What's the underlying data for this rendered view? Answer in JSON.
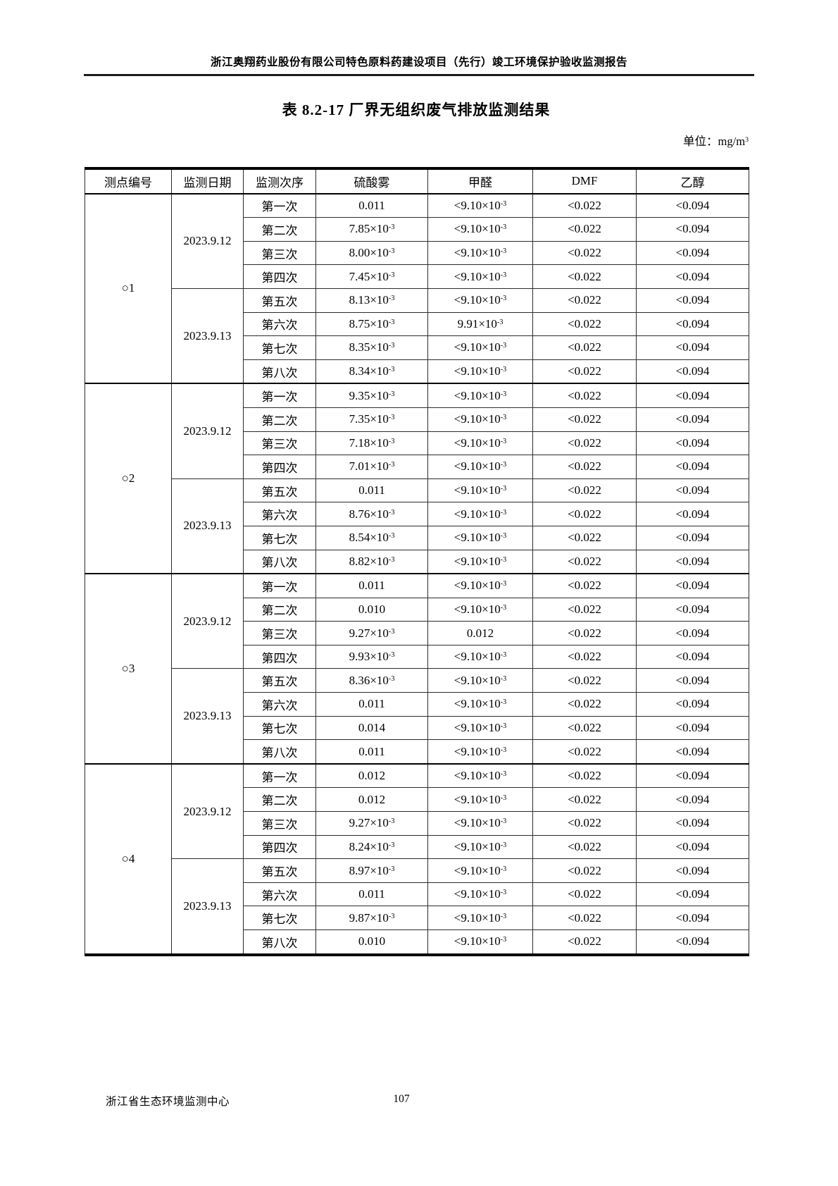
{
  "page_header": "浙江奥翔药业股份有限公司特色原料药建设项目（先行）竣工环境保护验收监测报告",
  "title": "表 8.2-17  厂界无组织废气排放监测结果",
  "unit": "单位：mg/m^3",
  "footer": {
    "org": "浙江省生态环境监测中心",
    "page_number": "107"
  },
  "table": {
    "headers": [
      "测点编号",
      "监测日期",
      "监测次序",
      "硫酸雾",
      "甲醛",
      "DMF",
      "乙醇"
    ],
    "sections": [
      {
        "point": "○1",
        "groups": [
          {
            "date": "2023.9.12",
            "rows": [
              [
                "第一次",
                "0.011",
                "<9.10×10^-3",
                "<0.022",
                "<0.094"
              ],
              [
                "第二次",
                "7.85×10^-3",
                "<9.10×10^-3",
                "<0.022",
                "<0.094"
              ],
              [
                "第三次",
                "8.00×10^-3",
                "<9.10×10^-3",
                "<0.022",
                "<0.094"
              ],
              [
                "第四次",
                "7.45×10^-3",
                "<9.10×10^-3",
                "<0.022",
                "<0.094"
              ]
            ]
          },
          {
            "date": "2023.9.13",
            "rows": [
              [
                "第五次",
                "8.13×10^-3",
                "<9.10×10^-3",
                "<0.022",
                "<0.094"
              ],
              [
                "第六次",
                "8.75×10^-3",
                "9.91×10^-3",
                "<0.022",
                "<0.094"
              ],
              [
                "第七次",
                "8.35×10^-3",
                "<9.10×10^-3",
                "<0.022",
                "<0.094"
              ],
              [
                "第八次",
                "8.34×10^-3",
                "<9.10×10^-3",
                "<0.022",
                "<0.094"
              ]
            ]
          }
        ]
      },
      {
        "point": "○2",
        "groups": [
          {
            "date": "2023.9.12",
            "rows": [
              [
                "第一次",
                "9.35×10^-3",
                "<9.10×10^-3",
                "<0.022",
                "<0.094"
              ],
              [
                "第二次",
                "7.35×10^-3",
                "<9.10×10^-3",
                "<0.022",
                "<0.094"
              ],
              [
                "第三次",
                "7.18×10^-3",
                "<9.10×10^-3",
                "<0.022",
                "<0.094"
              ],
              [
                "第四次",
                "7.01×10^-3",
                "<9.10×10^-3",
                "<0.022",
                "<0.094"
              ]
            ]
          },
          {
            "date": "2023.9.13",
            "rows": [
              [
                "第五次",
                "0.011",
                "<9.10×10^-3",
                "<0.022",
                "<0.094"
              ],
              [
                "第六次",
                "8.76×10^-3",
                "<9.10×10^-3",
                "<0.022",
                "<0.094"
              ],
              [
                "第七次",
                "8.54×10^-3",
                "<9.10×10^-3",
                "<0.022",
                "<0.094"
              ],
              [
                "第八次",
                "8.82×10^-3",
                "<9.10×10^-3",
                "<0.022",
                "<0.094"
              ]
            ]
          }
        ]
      },
      {
        "point": "○3",
        "groups": [
          {
            "date": "2023.9.12",
            "rows": [
              [
                "第一次",
                "0.011",
                "<9.10×10^-3",
                "<0.022",
                "<0.094"
              ],
              [
                "第二次",
                "0.010",
                "<9.10×10^-3",
                "<0.022",
                "<0.094"
              ],
              [
                "第三次",
                "9.27×10^-3",
                "0.012",
                "<0.022",
                "<0.094"
              ],
              [
                "第四次",
                "9.93×10^-3",
                "<9.10×10^-3",
                "<0.022",
                "<0.094"
              ]
            ]
          },
          {
            "date": "2023.9.13",
            "rows": [
              [
                "第五次",
                "8.36×10^-3",
                "<9.10×10^-3",
                "<0.022",
                "<0.094"
              ],
              [
                "第六次",
                "0.011",
                "<9.10×10^-3",
                "<0.022",
                "<0.094"
              ],
              [
                "第七次",
                "0.014",
                "<9.10×10^-3",
                "<0.022",
                "<0.094"
              ],
              [
                "第八次",
                "0.011",
                "<9.10×10^-3",
                "<0.022",
                "<0.094"
              ]
            ]
          }
        ]
      },
      {
        "point": "○4",
        "groups": [
          {
            "date": "2023.9.12",
            "rows": [
              [
                "第一次",
                "0.012",
                "<9.10×10^-3",
                "<0.022",
                "<0.094"
              ],
              [
                "第二次",
                "0.012",
                "<9.10×10^-3",
                "<0.022",
                "<0.094"
              ],
              [
                "第三次",
                "9.27×10^-3",
                "<9.10×10^-3",
                "<0.022",
                "<0.094"
              ],
              [
                "第四次",
                "8.24×10^-3",
                "<9.10×10^-3",
                "<0.022",
                "<0.094"
              ]
            ]
          },
          {
            "date": "2023.9.13",
            "rows": [
              [
                "第五次",
                "8.97×10^-3",
                "<9.10×10^-3",
                "<0.022",
                "<0.094"
              ],
              [
                "第六次",
                "0.011",
                "<9.10×10^-3",
                "<0.022",
                "<0.094"
              ],
              [
                "第七次",
                "9.87×10^-3",
                "<9.10×10^-3",
                "<0.022",
                "<0.094"
              ],
              [
                "第八次",
                "0.010",
                "<9.10×10^-3",
                "<0.022",
                "<0.094"
              ]
            ]
          }
        ]
      }
    ]
  }
}
